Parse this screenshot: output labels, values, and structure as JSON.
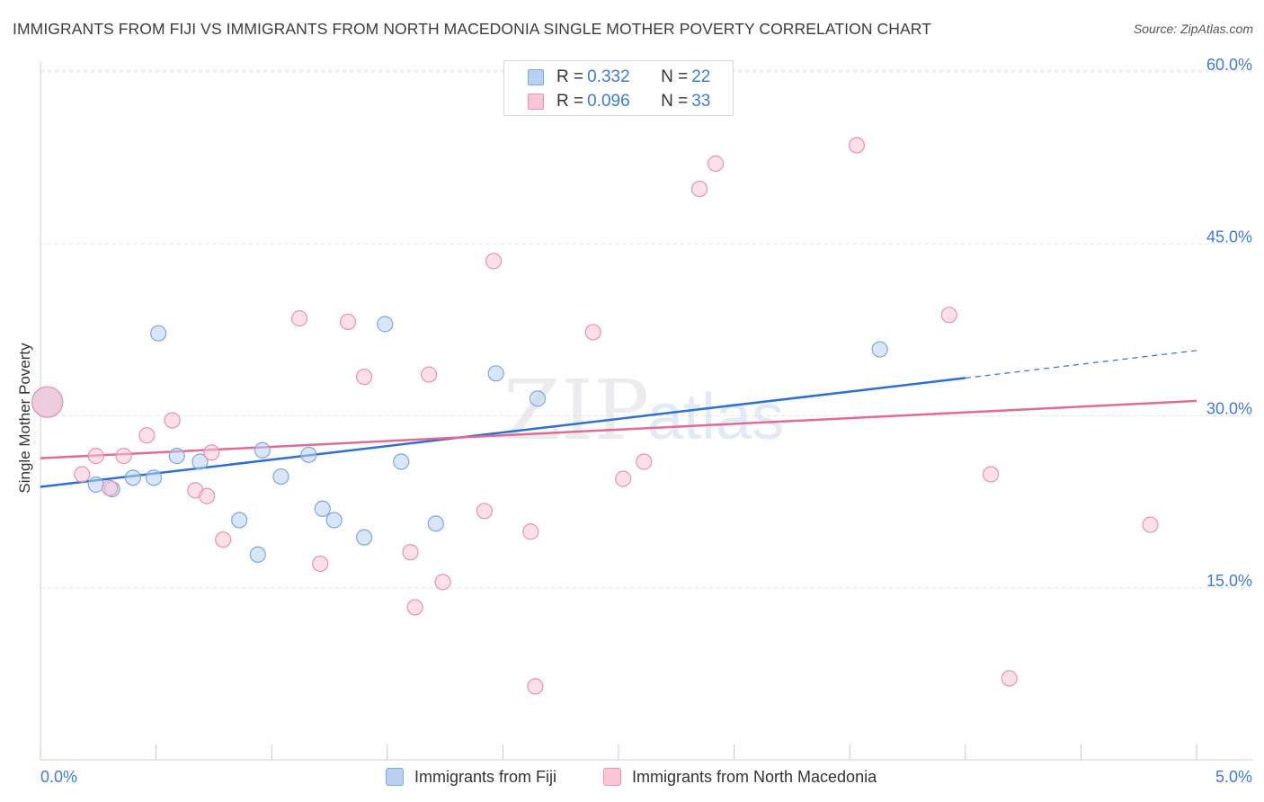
{
  "title": "IMMIGRANTS FROM FIJI VS IMMIGRANTS FROM NORTH MACEDONIA SINGLE MOTHER POVERTY CORRELATION CHART",
  "source": "Source: ZipAtlas.com",
  "watermark": {
    "part1": "ZIP",
    "part2": "atlas"
  },
  "legend_top": {
    "rows": [
      {
        "r_label": "R = ",
        "r_value": "0.332",
        "n_label": "N = ",
        "n_value": "22",
        "color": "#b8d1f3",
        "border": "#7ea6e0"
      },
      {
        "r_label": "R = ",
        "r_value": "0.096",
        "n_label": "N = ",
        "n_value": "33",
        "color": "#f8c6d5",
        "border": "#e893ae"
      }
    ]
  },
  "legend_bottom": [
    {
      "label": "Immigrants from Fiji",
      "color": "#b8d1f3",
      "border": "#7ea6e0"
    },
    {
      "label": "Immigrants from North Macedonia",
      "color": "#f8c6d5",
      "border": "#e893ae"
    }
  ],
  "colors": {
    "fiji_fill": "#b8d1f3",
    "fiji_stroke": "#7ea6e0",
    "fiji_line": "#2f6fd0",
    "mac_fill": "#f8c6d5",
    "mac_stroke": "#e893ae",
    "mac_line": "#e26a93",
    "tick_label": "#3f7ad9",
    "grid": "#e3e3e3"
  },
  "chart_data": {
    "type": "scatter",
    "title": "IMMIGRANTS FROM FIJI VS IMMIGRANTS FROM NORTH MACEDONIA SINGLE MOTHER POVERTY CORRELATION CHART",
    "xlabel": "",
    "ylabel": "Single Mother Poverty",
    "xlim": [
      0,
      5
    ],
    "ylim": [
      0,
      60
    ],
    "x_ticks": [
      "0.0%",
      "5.0%"
    ],
    "y_ticks": [
      {
        "value": 15,
        "label": "15.0%"
      },
      {
        "value": 30,
        "label": "30.0%"
      },
      {
        "value": 45,
        "label": "45.0%"
      },
      {
        "value": 60,
        "label": "60.0%"
      }
    ],
    "grid": true,
    "series": [
      {
        "name": "Immigrants from Fiji",
        "R": 0.332,
        "N": 22,
        "points": [
          [
            0.03,
            31.2
          ],
          [
            0.24,
            24.0
          ],
          [
            0.31,
            23.6
          ],
          [
            0.4,
            24.6
          ],
          [
            0.49,
            24.6
          ],
          [
            0.51,
            37.2
          ],
          [
            0.59,
            26.5
          ],
          [
            0.69,
            26.0
          ],
          [
            0.86,
            20.9
          ],
          [
            0.94,
            17.9
          ],
          [
            0.96,
            27.0
          ],
          [
            1.04,
            24.7
          ],
          [
            1.16,
            26.6
          ],
          [
            1.22,
            21.9
          ],
          [
            1.27,
            20.9
          ],
          [
            1.4,
            19.4
          ],
          [
            1.49,
            38.0
          ],
          [
            1.56,
            26.0
          ],
          [
            1.71,
            20.6
          ],
          [
            1.97,
            33.7
          ],
          [
            2.15,
            31.5
          ],
          [
            3.63,
            35.8
          ]
        ],
        "trend": {
          "x0": 0.0,
          "y0": 23.8,
          "x1": 4.0,
          "y1": 33.3,
          "dashed_to_x": 5.0,
          "dashed_to_y": 35.7
        }
      },
      {
        "name": "Immigrants from North Macedonia",
        "R": 0.096,
        "N": 33,
        "points": [
          [
            0.03,
            31.2
          ],
          [
            0.18,
            24.9
          ],
          [
            0.24,
            26.5
          ],
          [
            0.3,
            23.7
          ],
          [
            0.36,
            26.5
          ],
          [
            0.46,
            28.3
          ],
          [
            0.57,
            29.6
          ],
          [
            0.67,
            23.5
          ],
          [
            0.72,
            23.0
          ],
          [
            0.74,
            26.8
          ],
          [
            0.79,
            19.2
          ],
          [
            1.12,
            38.5
          ],
          [
            1.21,
            17.1
          ],
          [
            1.33,
            38.2
          ],
          [
            1.4,
            33.4
          ],
          [
            1.6,
            18.1
          ],
          [
            1.62,
            13.3
          ],
          [
            1.68,
            33.6
          ],
          [
            1.74,
            15.5
          ],
          [
            1.92,
            21.7
          ],
          [
            1.96,
            43.5
          ],
          [
            2.12,
            19.9
          ],
          [
            2.14,
            6.4
          ],
          [
            2.39,
            37.3
          ],
          [
            2.52,
            24.5
          ],
          [
            2.61,
            26.0
          ],
          [
            2.85,
            49.8
          ],
          [
            2.92,
            52.0
          ],
          [
            3.53,
            53.6
          ],
          [
            3.93,
            38.8
          ],
          [
            4.11,
            24.9
          ],
          [
            4.19,
            7.1
          ],
          [
            4.8,
            20.5
          ]
        ],
        "trend": {
          "x0": 0.0,
          "y0": 26.3,
          "x1": 5.0,
          "y1": 31.3
        }
      }
    ]
  }
}
